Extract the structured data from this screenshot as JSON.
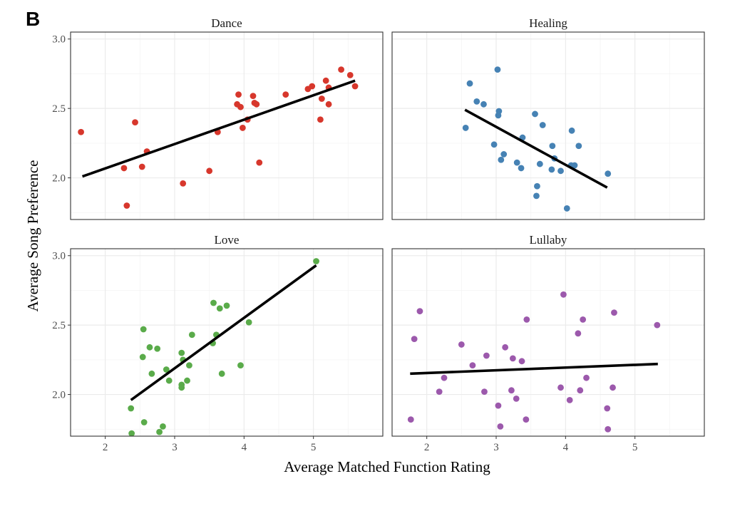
{
  "panel_tag": "B",
  "chart_data": {
    "type": "scatter",
    "layout": "facet_2x2",
    "xlabel": "Average Matched Function Rating",
    "ylabel": "Average Song Preference",
    "y_ticks": [
      "2.0",
      "2.5",
      "3.0"
    ],
    "y_tick_values": [
      2.0,
      2.5,
      3.0
    ],
    "x_ticks": [
      "2",
      "3",
      "4",
      "5"
    ],
    "x_tick_values": [
      2,
      3,
      4,
      5
    ],
    "trend_label": "fit",
    "panels": [
      {
        "title": "Dance",
        "color": "#d7372c",
        "xlim": [
          1.5,
          6.0
        ],
        "ylim": [
          1.7,
          3.05
        ],
        "trend": [
          [
            1.67,
            2.01
          ],
          [
            5.6,
            2.7
          ]
        ],
        "points": [
          [
            1.65,
            2.33
          ],
          [
            2.27,
            2.07
          ],
          [
            2.31,
            1.8
          ],
          [
            2.43,
            2.4
          ],
          [
            2.53,
            2.08
          ],
          [
            2.6,
            2.19
          ],
          [
            3.12,
            1.96
          ],
          [
            3.5,
            2.05
          ],
          [
            3.62,
            2.33
          ],
          [
            3.9,
            2.53
          ],
          [
            3.92,
            2.6
          ],
          [
            3.95,
            2.51
          ],
          [
            3.98,
            2.36
          ],
          [
            4.05,
            2.42
          ],
          [
            4.13,
            2.59
          ],
          [
            4.15,
            2.54
          ],
          [
            4.18,
            2.53
          ],
          [
            4.22,
            2.11
          ],
          [
            4.6,
            2.6
          ],
          [
            4.92,
            2.64
          ],
          [
            4.98,
            2.66
          ],
          [
            5.1,
            2.42
          ],
          [
            5.12,
            2.57
          ],
          [
            5.18,
            2.7
          ],
          [
            5.22,
            2.53
          ],
          [
            5.22,
            2.65
          ],
          [
            5.4,
            2.78
          ],
          [
            5.53,
            2.74
          ],
          [
            5.6,
            2.66
          ]
        ]
      },
      {
        "title": "Healing",
        "color": "#4682b4",
        "xlim": [
          1.5,
          6.0
        ],
        "ylim": [
          1.7,
          3.05
        ],
        "trend": [
          [
            2.55,
            2.49
          ],
          [
            4.6,
            1.93
          ]
        ],
        "points": [
          [
            2.56,
            2.36
          ],
          [
            2.62,
            2.68
          ],
          [
            2.72,
            2.55
          ],
          [
            2.82,
            2.53
          ],
          [
            2.97,
            2.24
          ],
          [
            3.02,
            2.78
          ],
          [
            3.03,
            2.45
          ],
          [
            3.04,
            2.48
          ],
          [
            3.07,
            2.13
          ],
          [
            3.11,
            2.17
          ],
          [
            3.3,
            2.11
          ],
          [
            3.36,
            2.07
          ],
          [
            3.38,
            2.29
          ],
          [
            3.56,
            2.46
          ],
          [
            3.58,
            1.87
          ],
          [
            3.59,
            1.94
          ],
          [
            3.63,
            2.1
          ],
          [
            3.67,
            2.38
          ],
          [
            3.8,
            2.06
          ],
          [
            3.81,
            2.23
          ],
          [
            3.84,
            2.14
          ],
          [
            3.93,
            2.05
          ],
          [
            4.02,
            1.78
          ],
          [
            4.08,
            2.09
          ],
          [
            4.09,
            2.34
          ],
          [
            4.13,
            2.09
          ],
          [
            4.19,
            2.23
          ],
          [
            4.61,
            2.03
          ]
        ]
      },
      {
        "title": "Love",
        "color": "#5aab4a",
        "xlim": [
          1.5,
          6.0
        ],
        "ylim": [
          1.7,
          3.05
        ],
        "trend": [
          [
            2.37,
            1.96
          ],
          [
            5.04,
            2.93
          ]
        ],
        "points": [
          [
            2.37,
            1.9
          ],
          [
            2.38,
            1.72
          ],
          [
            2.54,
            2.27
          ],
          [
            2.55,
            2.47
          ],
          [
            2.56,
            1.8
          ],
          [
            2.64,
            2.34
          ],
          [
            2.67,
            2.15
          ],
          [
            2.75,
            2.33
          ],
          [
            2.78,
            1.73
          ],
          [
            2.83,
            1.77
          ],
          [
            2.88,
            2.18
          ],
          [
            2.92,
            2.1
          ],
          [
            3.1,
            2.3
          ],
          [
            3.1,
            2.05
          ],
          [
            3.1,
            2.07
          ],
          [
            3.12,
            2.25
          ],
          [
            3.18,
            2.1
          ],
          [
            3.21,
            2.21
          ],
          [
            3.25,
            2.43
          ],
          [
            3.55,
            2.37
          ],
          [
            3.56,
            2.66
          ],
          [
            3.6,
            2.43
          ],
          [
            3.65,
            2.62
          ],
          [
            3.68,
            2.15
          ],
          [
            3.75,
            2.64
          ],
          [
            3.95,
            2.21
          ],
          [
            4.07,
            2.52
          ],
          [
            5.04,
            2.96
          ]
        ]
      },
      {
        "title": "Lullaby",
        "color": "#9c59ac",
        "xlim": [
          1.5,
          6.0
        ],
        "ylim": [
          1.7,
          3.05
        ],
        "trend": [
          [
            1.76,
            2.15
          ],
          [
            5.33,
            2.22
          ]
        ],
        "points": [
          [
            1.77,
            1.82
          ],
          [
            1.82,
            2.4
          ],
          [
            1.9,
            2.6
          ],
          [
            2.18,
            2.02
          ],
          [
            2.25,
            2.12
          ],
          [
            2.5,
            2.36
          ],
          [
            2.66,
            2.21
          ],
          [
            2.83,
            2.02
          ],
          [
            2.86,
            2.28
          ],
          [
            3.03,
            1.92
          ],
          [
            3.06,
            1.77
          ],
          [
            3.13,
            2.34
          ],
          [
            3.22,
            2.03
          ],
          [
            3.24,
            2.26
          ],
          [
            3.29,
            1.97
          ],
          [
            3.37,
            2.24
          ],
          [
            3.43,
            1.82
          ],
          [
            3.44,
            2.54
          ],
          [
            3.93,
            2.05
          ],
          [
            3.97,
            2.72
          ],
          [
            4.06,
            1.96
          ],
          [
            4.18,
            2.44
          ],
          [
            4.21,
            2.03
          ],
          [
            4.25,
            2.54
          ],
          [
            4.3,
            2.12
          ],
          [
            4.6,
            1.9
          ],
          [
            4.61,
            1.75
          ],
          [
            4.68,
            2.05
          ],
          [
            4.7,
            2.59
          ],
          [
            5.32,
            2.5
          ]
        ]
      }
    ]
  }
}
